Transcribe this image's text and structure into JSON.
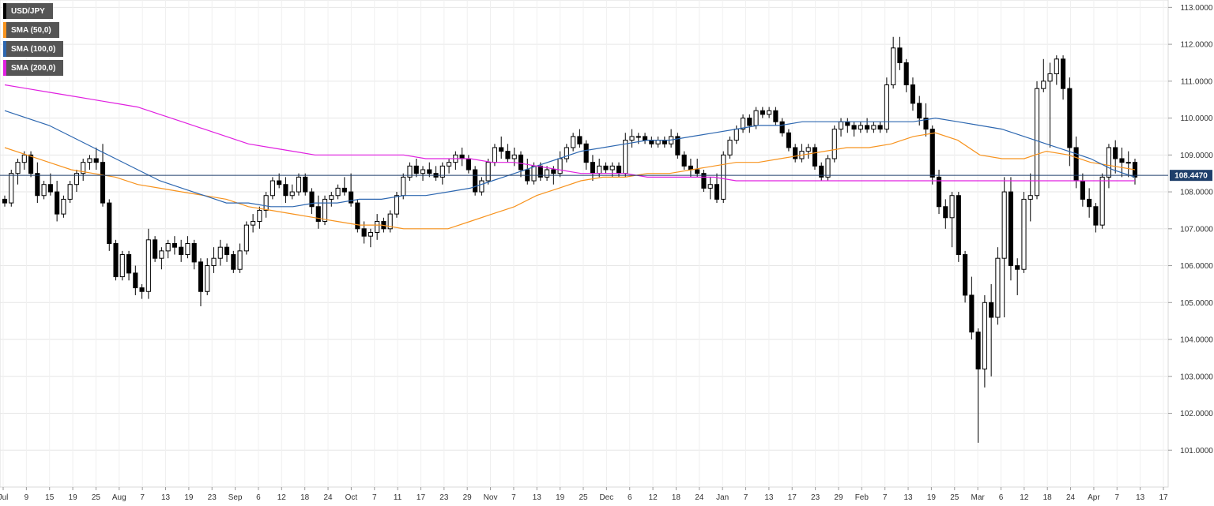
{
  "legend": {
    "items": [
      {
        "label": "USD/JPY",
        "color": "#000000"
      },
      {
        "label": "SMA (50,0)",
        "color": "#f7931e"
      },
      {
        "label": "SMA (100,0)",
        "color": "#2d67b0"
      },
      {
        "label": "SMA (200,0)",
        "color": "#e020e0"
      }
    ]
  },
  "current_price": "108.4470",
  "chart_data": {
    "type": "candlestick",
    "title": "",
    "xlabel": "",
    "ylabel": "",
    "ylim": [
      100.0,
      113.2
    ],
    "y_ticks": [
      "101.0000",
      "102.0000",
      "103.0000",
      "104.0000",
      "105.0000",
      "106.0000",
      "107.0000",
      "108.0000",
      "109.0000",
      "110.0000",
      "111.0000",
      "112.0000",
      "113.0000"
    ],
    "x_ticks": [
      "Jul",
      "9",
      "15",
      "19",
      "25",
      "Aug",
      "7",
      "13",
      "19",
      "23",
      "Sep",
      "6",
      "12",
      "18",
      "24",
      "Oct",
      "7",
      "11",
      "17",
      "23",
      "29",
      "Nov",
      "7",
      "13",
      "19",
      "25",
      "Dec",
      "6",
      "12",
      "18",
      "24",
      "Jan",
      "7",
      "13",
      "17",
      "23",
      "29",
      "Feb",
      "7",
      "13",
      "19",
      "25",
      "Mar",
      "6",
      "12",
      "18",
      "24",
      "Apr",
      "7",
      "13",
      "17"
    ],
    "grid": true,
    "legend_position": "top-left",
    "last_value": 108.447,
    "candles": [
      [
        107.8,
        107.9,
        107.6,
        107.7
      ],
      [
        107.7,
        108.6,
        107.6,
        108.5
      ],
      [
        108.5,
        108.9,
        108.2,
        108.8
      ],
      [
        108.8,
        109.1,
        108.6,
        109.0
      ],
      [
        109.0,
        109.1,
        108.4,
        108.5
      ],
      [
        108.5,
        108.8,
        107.7,
        107.9
      ],
      [
        107.9,
        108.3,
        107.8,
        108.2
      ],
      [
        108.2,
        108.5,
        107.9,
        108.0
      ],
      [
        108.0,
        108.3,
        107.2,
        107.4
      ],
      [
        107.4,
        107.9,
        107.3,
        107.8
      ],
      [
        107.8,
        108.3,
        107.7,
        108.2
      ],
      [
        108.2,
        108.6,
        108.0,
        108.5
      ],
      [
        108.5,
        108.9,
        108.3,
        108.8
      ],
      [
        108.8,
        109.0,
        108.6,
        108.9
      ],
      [
        108.9,
        109.2,
        108.6,
        108.8
      ],
      [
        108.8,
        109.3,
        107.6,
        107.7
      ],
      [
        107.7,
        107.8,
        106.4,
        106.6
      ],
      [
        106.6,
        106.7,
        105.6,
        105.7
      ],
      [
        105.7,
        106.4,
        105.6,
        106.3
      ],
      [
        106.3,
        106.4,
        105.6,
        105.8
      ],
      [
        105.8,
        106.0,
        105.2,
        105.4
      ],
      [
        105.4,
        105.5,
        105.1,
        105.3
      ],
      [
        105.3,
        107.0,
        105.1,
        106.7
      ],
      [
        106.7,
        106.8,
        106.1,
        106.2
      ],
      [
        106.2,
        106.5,
        105.9,
        106.4
      ],
      [
        106.4,
        106.7,
        106.2,
        106.6
      ],
      [
        106.6,
        106.8,
        106.3,
        106.5
      ],
      [
        106.5,
        106.7,
        106.1,
        106.3
      ],
      [
        106.3,
        106.8,
        106.2,
        106.6
      ],
      [
        106.6,
        106.7,
        105.9,
        106.1
      ],
      [
        106.1,
        106.2,
        104.9,
        105.3
      ],
      [
        105.3,
        106.2,
        105.2,
        106.0
      ],
      [
        106.0,
        106.5,
        105.8,
        106.2
      ],
      [
        106.2,
        106.7,
        106.0,
        106.5
      ],
      [
        106.5,
        106.6,
        106.1,
        106.3
      ],
      [
        106.3,
        106.4,
        105.8,
        105.9
      ],
      [
        105.9,
        106.6,
        105.8,
        106.4
      ],
      [
        106.4,
        107.2,
        106.3,
        107.1
      ],
      [
        107.1,
        107.4,
        106.9,
        107.2
      ],
      [
        107.2,
        107.6,
        107.0,
        107.5
      ],
      [
        107.5,
        108.0,
        107.3,
        107.9
      ],
      [
        107.9,
        108.4,
        107.8,
        108.3
      ],
      [
        108.3,
        108.5,
        108.1,
        108.2
      ],
      [
        108.2,
        108.4,
        107.7,
        107.9
      ],
      [
        107.9,
        108.2,
        107.8,
        108.0
      ],
      [
        108.0,
        108.5,
        107.9,
        108.4
      ],
      [
        108.4,
        108.5,
        107.9,
        108.0
      ],
      [
        108.0,
        108.1,
        107.4,
        107.6
      ],
      [
        107.6,
        107.9,
        107.0,
        107.2
      ],
      [
        107.2,
        107.9,
        107.1,
        107.8
      ],
      [
        107.8,
        108.0,
        107.6,
        107.9
      ],
      [
        107.9,
        108.2,
        107.8,
        108.1
      ],
      [
        108.1,
        108.4,
        107.9,
        108.0
      ],
      [
        108.0,
        108.5,
        107.6,
        107.7
      ],
      [
        107.7,
        107.8,
        106.9,
        107.0
      ],
      [
        107.0,
        107.2,
        106.6,
        106.8
      ],
      [
        106.8,
        107.0,
        106.5,
        106.9
      ],
      [
        106.9,
        107.4,
        106.7,
        107.2
      ],
      [
        107.2,
        107.3,
        106.9,
        107.0
      ],
      [
        107.0,
        107.5,
        106.9,
        107.4
      ],
      [
        107.4,
        108.0,
        107.3,
        107.9
      ],
      [
        107.9,
        108.5,
        107.8,
        108.4
      ],
      [
        108.4,
        108.8,
        108.3,
        108.7
      ],
      [
        108.7,
        108.9,
        108.4,
        108.5
      ],
      [
        108.5,
        108.7,
        108.3,
        108.6
      ],
      [
        108.6,
        108.8,
        108.4,
        108.5
      ],
      [
        108.5,
        108.7,
        108.3,
        108.4
      ],
      [
        108.4,
        108.8,
        108.2,
        108.7
      ],
      [
        108.7,
        108.9,
        108.5,
        108.8
      ],
      [
        108.8,
        109.1,
        108.6,
        109.0
      ],
      [
        109.0,
        109.2,
        108.7,
        108.9
      ],
      [
        108.9,
        109.0,
        108.5,
        108.6
      ],
      [
        108.6,
        108.7,
        107.9,
        108.0
      ],
      [
        108.0,
        108.4,
        107.9,
        108.3
      ],
      [
        108.3,
        108.9,
        108.2,
        108.8
      ],
      [
        108.8,
        109.3,
        108.7,
        109.2
      ],
      [
        109.2,
        109.5,
        108.9,
        109.1
      ],
      [
        109.1,
        109.3,
        108.8,
        108.9
      ],
      [
        108.9,
        109.2,
        108.7,
        109.0
      ],
      [
        109.0,
        109.1,
        108.4,
        108.6
      ],
      [
        108.6,
        108.9,
        108.2,
        108.3
      ],
      [
        108.3,
        108.8,
        108.2,
        108.7
      ],
      [
        108.7,
        108.8,
        108.3,
        108.4
      ],
      [
        108.4,
        108.7,
        108.3,
        108.6
      ],
      [
        108.6,
        108.7,
        108.2,
        108.5
      ],
      [
        108.5,
        109.1,
        108.4,
        108.9
      ],
      [
        108.9,
        109.3,
        108.8,
        109.2
      ],
      [
        109.2,
        109.6,
        109.1,
        109.5
      ],
      [
        109.5,
        109.7,
        109.2,
        109.3
      ],
      [
        109.3,
        109.4,
        108.6,
        108.8
      ],
      [
        108.8,
        109.0,
        108.3,
        108.5
      ],
      [
        108.5,
        108.9,
        108.4,
        108.7
      ],
      [
        108.7,
        108.8,
        108.5,
        108.6
      ],
      [
        108.6,
        108.8,
        108.4,
        108.7
      ],
      [
        108.7,
        108.8,
        108.4,
        108.5
      ],
      [
        108.5,
        109.6,
        108.4,
        109.4
      ],
      [
        109.4,
        109.7,
        109.2,
        109.5
      ],
      [
        109.5,
        109.6,
        109.3,
        109.5
      ],
      [
        109.5,
        109.6,
        109.3,
        109.4
      ],
      [
        109.4,
        109.5,
        109.2,
        109.3
      ],
      [
        109.3,
        109.5,
        109.2,
        109.4
      ],
      [
        109.4,
        109.5,
        109.2,
        109.3
      ],
      [
        109.3,
        109.7,
        109.2,
        109.5
      ],
      [
        109.5,
        109.6,
        108.9,
        109.0
      ],
      [
        109.0,
        109.1,
        108.6,
        108.7
      ],
      [
        108.7,
        108.9,
        108.4,
        108.6
      ],
      [
        108.6,
        108.9,
        108.4,
        108.5
      ],
      [
        108.5,
        108.6,
        108.0,
        108.1
      ],
      [
        108.1,
        108.4,
        107.8,
        108.2
      ],
      [
        108.2,
        108.5,
        107.7,
        107.8
      ],
      [
        107.8,
        109.1,
        107.7,
        109.0
      ],
      [
        109.0,
        109.5,
        108.9,
        109.4
      ],
      [
        109.4,
        109.8,
        109.3,
        109.7
      ],
      [
        109.7,
        110.1,
        109.6,
        110.0
      ],
      [
        110.0,
        110.1,
        109.6,
        109.8
      ],
      [
        109.8,
        110.3,
        109.7,
        110.2
      ],
      [
        110.2,
        110.3,
        110.0,
        110.1
      ],
      [
        110.1,
        110.3,
        110.0,
        110.2
      ],
      [
        110.2,
        110.3,
        109.8,
        109.9
      ],
      [
        109.9,
        110.0,
        109.5,
        109.6
      ],
      [
        109.6,
        109.7,
        109.1,
        109.2
      ],
      [
        109.2,
        109.3,
        108.8,
        108.9
      ],
      [
        108.9,
        109.3,
        108.8,
        109.1
      ],
      [
        109.1,
        109.3,
        108.9,
        109.2
      ],
      [
        109.2,
        109.3,
        108.6,
        108.7
      ],
      [
        108.7,
        108.8,
        108.3,
        108.4
      ],
      [
        108.4,
        109.0,
        108.3,
        108.9
      ],
      [
        108.9,
        109.8,
        108.8,
        109.7
      ],
      [
        109.7,
        110.0,
        109.5,
        109.9
      ],
      [
        109.9,
        110.0,
        109.6,
        109.8
      ],
      [
        109.8,
        109.9,
        109.5,
        109.7
      ],
      [
        109.7,
        109.9,
        109.6,
        109.8
      ],
      [
        109.8,
        110.0,
        109.6,
        109.7
      ],
      [
        109.7,
        109.9,
        109.6,
        109.8
      ],
      [
        109.8,
        109.9,
        109.6,
        109.7
      ],
      [
        109.7,
        111.1,
        109.6,
        110.9
      ],
      [
        110.9,
        112.2,
        110.8,
        111.9
      ],
      [
        111.9,
        112.2,
        111.3,
        111.5
      ],
      [
        111.5,
        111.6,
        110.7,
        110.9
      ],
      [
        110.9,
        111.1,
        110.2,
        110.4
      ],
      [
        110.4,
        110.6,
        109.8,
        110.0
      ],
      [
        110.0,
        110.4,
        109.5,
        109.7
      ],
      [
        109.7,
        109.8,
        108.2,
        108.4
      ],
      [
        108.4,
        108.6,
        107.4,
        107.6
      ],
      [
        107.6,
        107.8,
        107.0,
        107.3
      ],
      [
        107.3,
        108.0,
        106.5,
        107.9
      ],
      [
        107.9,
        108.0,
        106.1,
        106.3
      ],
      [
        106.3,
        106.4,
        105.0,
        105.2
      ],
      [
        105.2,
        105.7,
        104.0,
        104.2
      ],
      [
        104.2,
        104.3,
        101.2,
        103.2
      ],
      [
        103.2,
        105.2,
        102.7,
        105.0
      ],
      [
        105.0,
        105.5,
        103.0,
        104.6
      ],
      [
        104.6,
        106.5,
        104.4,
        106.2
      ],
      [
        106.2,
        108.4,
        104.6,
        108.0
      ],
      [
        108.0,
        108.4,
        105.6,
        106.0
      ],
      [
        106.0,
        106.2,
        105.2,
        105.9
      ],
      [
        105.9,
        108.0,
        105.8,
        107.8
      ],
      [
        107.8,
        108.5,
        107.2,
        107.9
      ],
      [
        107.9,
        111.0,
        107.8,
        110.8
      ],
      [
        110.8,
        111.6,
        110.7,
        111.0
      ],
      [
        111.0,
        111.5,
        109.2,
        111.2
      ],
      [
        111.2,
        111.7,
        110.9,
        111.6
      ],
      [
        111.6,
        111.7,
        110.5,
        110.8
      ],
      [
        110.8,
        111.1,
        108.7,
        109.2
      ],
      [
        109.2,
        109.5,
        108.1,
        108.3
      ],
      [
        108.3,
        108.5,
        107.6,
        107.8
      ],
      [
        107.8,
        108.1,
        107.3,
        107.6
      ],
      [
        107.6,
        107.7,
        106.9,
        107.1
      ],
      [
        107.1,
        108.5,
        107.0,
        108.4
      ],
      [
        108.4,
        109.3,
        108.1,
        109.2
      ],
      [
        109.2,
        109.4,
        108.5,
        108.9
      ],
      [
        108.9,
        109.2,
        108.4,
        108.8
      ],
      [
        108.8,
        109.1,
        108.4,
        108.8
      ],
      [
        108.8,
        108.9,
        108.2,
        108.4
      ]
    ],
    "series": [
      {
        "name": "SMA (50,0)",
        "values": [
          109.2,
          109.0,
          108.8,
          108.6,
          108.5,
          108.4,
          108.2,
          108.1,
          108.0,
          107.9,
          107.8,
          107.6,
          107.5,
          107.4,
          107.3,
          107.2,
          107.1,
          107.1,
          107.0,
          107.0,
          107.0,
          107.2,
          107.4,
          107.6,
          107.9,
          108.1,
          108.3,
          108.4,
          108.4,
          108.5,
          108.5,
          108.6,
          108.7,
          108.8,
          108.8,
          108.9,
          109.0,
          109.1,
          109.2,
          109.2,
          109.3,
          109.5,
          109.6,
          109.4,
          109.0,
          108.9,
          108.9,
          109.1,
          109.0,
          108.8,
          108.7,
          108.6
        ]
      },
      {
        "name": "SMA (100,0)",
        "values": [
          110.2,
          110.0,
          109.8,
          109.5,
          109.2,
          108.9,
          108.6,
          108.3,
          108.1,
          107.9,
          107.7,
          107.7,
          107.6,
          107.6,
          107.7,
          107.7,
          107.8,
          107.8,
          107.9,
          107.9,
          108.0,
          108.1,
          108.3,
          108.5,
          108.7,
          108.9,
          109.1,
          109.2,
          109.3,
          109.4,
          109.4,
          109.5,
          109.6,
          109.7,
          109.8,
          109.8,
          109.9,
          109.9,
          109.9,
          109.9,
          109.9,
          109.9,
          110.0,
          109.9,
          109.8,
          109.7,
          109.5,
          109.3,
          109.1,
          108.9,
          108.6,
          108.4
        ]
      },
      {
        "name": "SMA (200,0)",
        "values": [
          110.9,
          110.8,
          110.7,
          110.6,
          110.5,
          110.4,
          110.3,
          110.1,
          109.9,
          109.7,
          109.5,
          109.3,
          109.2,
          109.1,
          109.0,
          109.0,
          109.0,
          109.0,
          109.0,
          108.9,
          108.9,
          108.9,
          108.8,
          108.8,
          108.7,
          108.6,
          108.5,
          108.5,
          108.5,
          108.4,
          108.4,
          108.4,
          108.4,
          108.3,
          108.3,
          108.3,
          108.3,
          108.3,
          108.3,
          108.3,
          108.3,
          108.3,
          108.3,
          108.3,
          108.3,
          108.3,
          108.3,
          108.3,
          108.3,
          108.3,
          108.3,
          108.3
        ]
      }
    ]
  }
}
